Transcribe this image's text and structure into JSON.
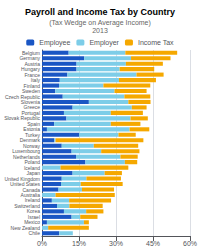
{
  "chart_data": {
    "type": "bar",
    "orientation": "horizontal",
    "stacked": true,
    "title": "Payroll and Income Tax by Country",
    "subtitle": "(Tax Wedge on Average Income)",
    "annotations": [
      "2013"
    ],
    "categories": [
      "Belgium",
      "Germany",
      "Austria",
      "Hungary",
      "France",
      "Italy",
      "Finland",
      "Sweden",
      "Czech Republic",
      "Slovenia",
      "Greece",
      "Portugal",
      "Slovak Republic",
      "Spain",
      "Estonia",
      "Turkey",
      "Denmark",
      "Norway",
      "Luxembourg",
      "Netherlands",
      "Poland",
      "Iceland",
      "Japan",
      "United Kingdom",
      "United States",
      "Canada",
      "Australia",
      "Ireland",
      "Switzerland",
      "Korea",
      "Israel",
      "Mexico",
      "New Zealand",
      "Chile"
    ],
    "series": [
      {
        "name": "Employee",
        "color": "#1A56C4",
        "values": [
          10.8,
          17.1,
          14.0,
          14.0,
          10.3,
          7.2,
          6.9,
          5.4,
          8.4,
          19.0,
          12.4,
          8.9,
          9.9,
          4.9,
          2.0,
          15.0,
          5.0,
          8.0,
          12.0,
          13.8,
          17.6,
          0.0,
          12.4,
          8.0,
          7.7,
          6.7,
          0.0,
          4.0,
          6.1,
          8.9,
          12.0,
          2.0,
          0.0,
          7.0
        ]
      },
      {
        "name": "Employer",
        "color": "#7DCDE8",
        "values": [
          23.0,
          19.0,
          20.0,
          17.5,
          28.0,
          24.0,
          18.0,
          24.0,
          25.0,
          16.0,
          24.0,
          19.0,
          26.0,
          23.0,
          33.5,
          16.0,
          0.5,
          13.0,
          12.0,
          18.0,
          16.0,
          7.5,
          13.0,
          10.0,
          8.0,
          9.5,
          5.5,
          7.0,
          5.0,
          9.0,
          3.5,
          15.0,
          2.5,
          5.5
        ]
      },
      {
        "name": "Income Tax",
        "color": "#F5A800",
        "values": [
          21.0,
          16.0,
          15.0,
          14.0,
          11.0,
          15.0,
          19.0,
          13.0,
          10.5,
          9.0,
          6.0,
          13.0,
          7.0,
          12.0,
          8.0,
          7.0,
          35.6,
          18.0,
          15.5,
          7.0,
          5.0,
          27.5,
          7.0,
          14.0,
          17.0,
          13.0,
          24.0,
          17.0,
          13.5,
          7.0,
          7.0,
          2.0,
          16.5,
          0.0
        ]
      }
    ],
    "xlim": [
      0,
      60
    ],
    "xticks": [
      {
        "value": 0,
        "label": "0%"
      },
      {
        "value": 15,
        "label": "15%"
      },
      {
        "value": 30,
        "label": "30%"
      },
      {
        "value": 45,
        "label": "45%"
      },
      {
        "value": 60,
        "label": "60%"
      }
    ],
    "grid": true,
    "legend": "top"
  }
}
